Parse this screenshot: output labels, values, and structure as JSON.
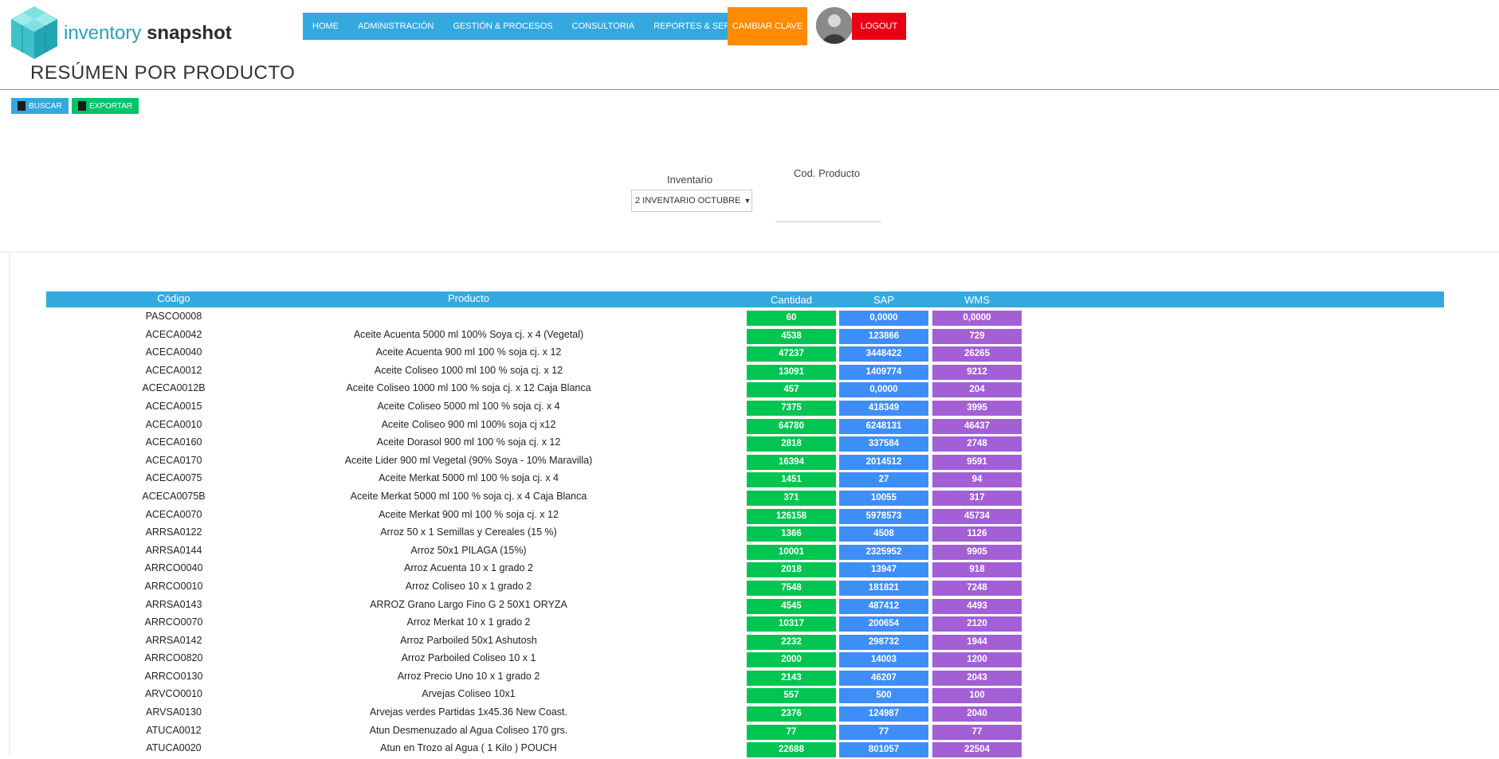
{
  "brand": {
    "name_part1": "inventory",
    "name_part2": "snapshot"
  },
  "nav": {
    "items": [
      "HOME",
      "ADMINISTRACIÓN",
      "GESTIÓN & PROCESOS",
      "CONSULTORIA",
      "REPORTES & SERVICIOS"
    ],
    "cambiar_clave": "CAMBIAR CLAVE",
    "logout": "LOGOUT"
  },
  "page": {
    "title": "RESÚMEN POR PRODUCTO"
  },
  "toolbar": {
    "buscar": "BUSCAR",
    "exportar": "EXPORTAR"
  },
  "filters": {
    "inventario_label": "Inventario",
    "inventario_value": "2 INVENTARIO OCTUBRE",
    "cod_producto_label": "Cod. Producto",
    "cod_producto_value": ""
  },
  "colors": {
    "accent": "#33a9df",
    "orange": "#ff8b00",
    "red": "#ea0012",
    "green": "#00c551",
    "blue": "#3e8ef7",
    "purple": "#a35fd6"
  },
  "table": {
    "headers": [
      "Código",
      "Producto",
      "Cantidad",
      "SAP",
      "WMS"
    ],
    "rows": [
      [
        "PASCO0008",
        "",
        "60",
        "0,0000",
        "0,0000"
      ],
      [
        "ACECA0042",
        "Aceite Acuenta 5000 ml 100% Soya cj. x 4 (Vegetal)",
        "4538",
        "123866",
        "729"
      ],
      [
        "ACECA0040",
        "Aceite Acuenta 900 ml 100 % soja cj. x 12",
        "47237",
        "3448422",
        "26265"
      ],
      [
        "ACECA0012",
        "Aceite Coliseo 1000 ml 100 % soja cj. x 12",
        "13091",
        "1409774",
        "9212"
      ],
      [
        "ACECA0012B",
        "Aceite Coliseo 1000 ml 100 % soja cj. x 12 Caja Blanca",
        "457",
        "0,0000",
        "204"
      ],
      [
        "ACECA0015",
        "Aceite Coliseo 5000 ml 100 % soja cj. x 4",
        "7375",
        "418349",
        "3995"
      ],
      [
        "ACECA0010",
        "Aceite Coliseo 900 ml 100% soja cj x12",
        "64780",
        "6248131",
        "46437"
      ],
      [
        "ACECA0160",
        "Aceite Dorasol 900 ml 100 % soja cj. x 12",
        "2818",
        "337584",
        "2748"
      ],
      [
        "ACECA0170",
        "Aceite Lider 900 ml Vegetal (90% Soya - 10% Maravilla)",
        "16394",
        "2014512",
        "9591"
      ],
      [
        "ACECA0075",
        "Aceite Merkat 5000 ml 100 % soja cj. x 4",
        "1451",
        "27",
        "94"
      ],
      [
        "ACECA0075B",
        "Aceite Merkat 5000 ml 100 % soja cj. x 4 Caja Blanca",
        "371",
        "10055",
        "317"
      ],
      [
        "ACECA0070",
        "Aceite Merkat 900 ml 100 % soja cj. x 12",
        "126158",
        "5978573",
        "45734"
      ],
      [
        "ARRSA0122",
        "Arroz 50 x 1 Semillas y Cereales (15 %)",
        "1366",
        "4508",
        "1126"
      ],
      [
        "ARRSA0144",
        "Arroz 50x1 PILAGA (15%)",
        "10001",
        "2325952",
        "9905"
      ],
      [
        "ARRCO0040",
        "Arroz Acuenta 10 x 1 grado 2",
        "2018",
        "13947",
        "918"
      ],
      [
        "ARRCO0010",
        "Arroz Coliseo 10 x 1 grado 2",
        "7548",
        "181821",
        "7248"
      ],
      [
        "ARRSA0143",
        "ARROZ Grano Largo Fino G 2 50X1 ORYZA",
        "4545",
        "487412",
        "4493"
      ],
      [
        "ARRCO0070",
        "Arroz Merkat 10 x 1 grado 2",
        "10317",
        "200654",
        "2120"
      ],
      [
        "ARRSA0142",
        "Arroz Parboiled 50x1 Ashutosh",
        "2232",
        "298732",
        "1944"
      ],
      [
        "ARRCO0820",
        "Arroz Parboiled Coliseo 10 x 1",
        "2000",
        "14003",
        "1200"
      ],
      [
        "ARRCO0130",
        "Arroz Precio Uno 10 x 1 grado 2",
        "2143",
        "46207",
        "2043"
      ],
      [
        "ARVCO0010",
        "Arvejas Coliseo 10x1",
        "557",
        "500",
        "100"
      ],
      [
        "ARVSA0130",
        "Arvejas verdes Partidas 1x45.36 New Coast.",
        "2376",
        "124987",
        "2040"
      ],
      [
        "ATUCA0012",
        "Atun Desmenuzado al Agua Coliseo 170 grs.",
        "77",
        "77",
        "77"
      ],
      [
        "ATUCA0020",
        "Atun en Trozo al Agua ( 1 Kilo ) POUCH",
        "22688",
        "801057",
        "22504"
      ]
    ]
  }
}
